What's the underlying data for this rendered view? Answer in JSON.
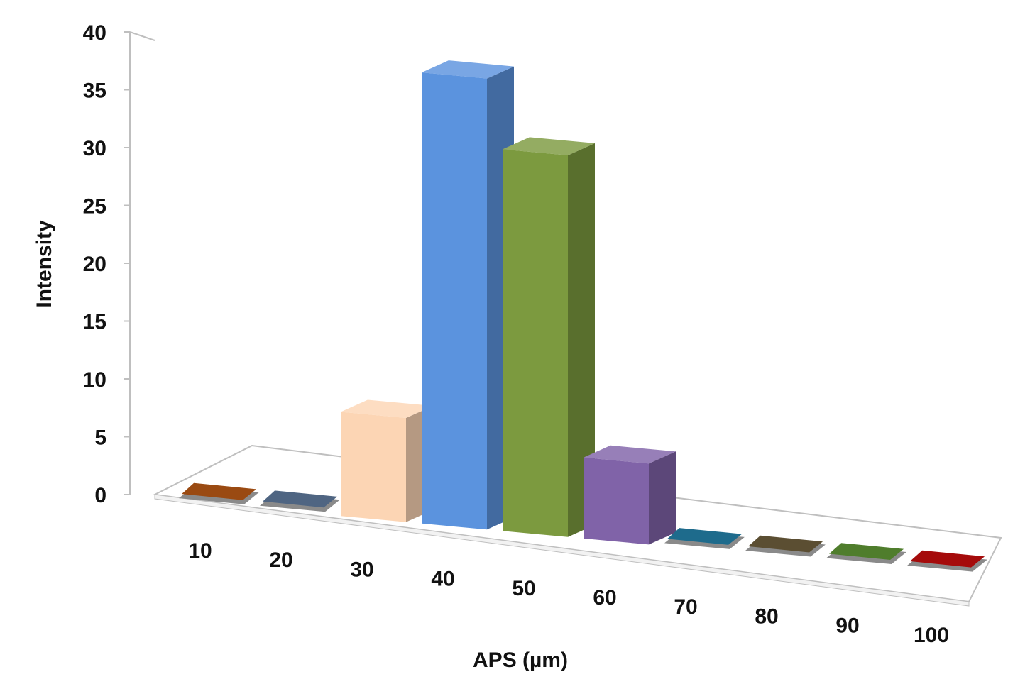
{
  "chart_data": {
    "type": "bar",
    "style": "3d-column",
    "categories": [
      "10",
      "20",
      "30",
      "40",
      "50",
      "60",
      "70",
      "80",
      "90",
      "100"
    ],
    "values": [
      0,
      0,
      9,
      39,
      33,
      7,
      0,
      0,
      0,
      0
    ],
    "colors": [
      "#9a4a12",
      "#4f6582",
      "#fcd5b4",
      "#5b93de",
      "#7c9a3f",
      "#8063a8",
      "#1e6b8c",
      "#5b4e32",
      "#4f7d2c",
      "#a50b0b"
    ],
    "title": "",
    "xlabel": "APS (µm)",
    "ylabel": "Intensity",
    "ylim": [
      0,
      40
    ],
    "yticks": [
      "0",
      "5",
      "10",
      "15",
      "20",
      "25",
      "30",
      "35",
      "40"
    ],
    "grid": false,
    "legend": "none"
  }
}
